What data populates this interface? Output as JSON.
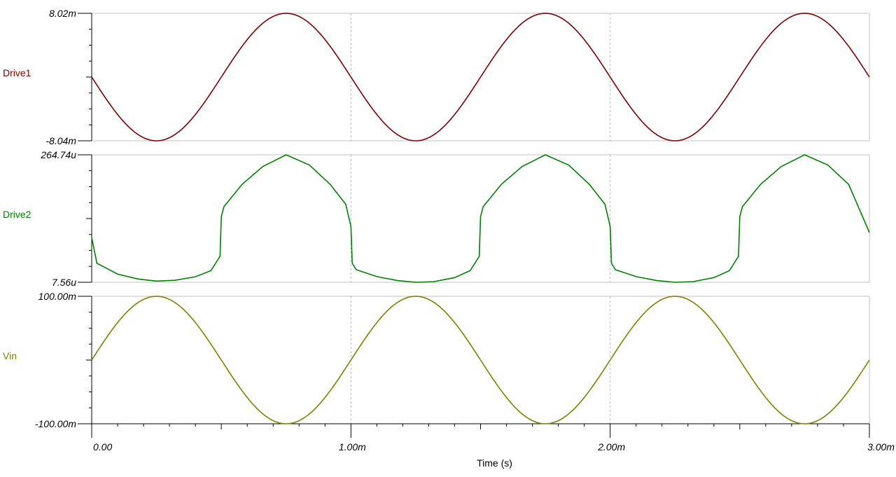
{
  "chart_data": {
    "type": "line",
    "xlabel": "Time (s)",
    "x_range": [
      0,
      0.003
    ],
    "x_tick_labels": [
      "0.00",
      "1.00m",
      "2.00m",
      "3.00m"
    ],
    "x_tick_values": [
      0,
      0.001,
      0.002,
      0.003
    ],
    "grid": "vertical dashed at major x ticks",
    "panels": [
      {
        "name": "Drive1",
        "color": "#800000",
        "y_range": [
          -0.00804,
          0.00802
        ],
        "y_tick_labels": [
          "8.02m",
          "-8.04m"
        ],
        "x": [
          0,
          0.00025,
          0.0005,
          0.00075,
          0.001,
          0.00125,
          0.0015,
          0.00175,
          0.002,
          0.00225,
          0.0025,
          0.00275,
          0.003
        ],
        "y": [
          0,
          -0.00804,
          0,
          0.00802,
          0,
          -0.00804,
          0,
          0.00802,
          0,
          -0.00804,
          0,
          0.00802,
          0
        ]
      },
      {
        "name": "Drive2",
        "color": "#008000",
        "y_range": [
          7.56e-06,
          0.00026474
        ],
        "y_tick_labels": [
          "264.74u",
          "7.56u"
        ],
        "x": [
          0,
          2e-05,
          0.0001,
          0.00018,
          0.00025,
          0.00032,
          0.0004,
          0.00046,
          0.000495,
          0.0005,
          0.00051,
          0.00058,
          0.00066,
          0.00075,
          0.00084,
          0.00092,
          0.00098,
          0.001,
          0.001005,
          0.00102,
          0.0011,
          0.00118,
          0.00125,
          0.00132,
          0.0014,
          0.00146,
          0.001495,
          0.0015,
          0.00151,
          0.00158,
          0.00166,
          0.00175,
          0.00184,
          0.00192,
          0.00198,
          0.002,
          0.002005,
          0.00202,
          0.0021,
          0.00218,
          0.00225,
          0.00232,
          0.0024,
          0.00246,
          0.002495,
          0.0025,
          0.00251,
          0.00258,
          0.00266,
          0.00275,
          0.00284,
          0.00292,
          0.003
        ],
        "y": [
          9.8e-05,
          4.6e-05,
          2.4e-05,
          1.4e-05,
          9.9e-06,
          1.15e-05,
          1.87e-05,
          3.1e-05,
          6e-05,
          0.00014,
          0.00016,
          0.000205,
          0.000241,
          0.00026474,
          0.000244,
          0.000205,
          0.000165,
          0.00012,
          4.6e-05,
          3.3e-05,
          1.9e-05,
          1.1e-05,
          7.56e-06,
          8.8e-06,
          1.7e-05,
          3.1e-05,
          6e-05,
          0.00014,
          0.00016,
          0.000205,
          0.000241,
          0.00026474,
          0.000244,
          0.000205,
          0.000165,
          0.00012,
          4.6e-05,
          3.3e-05,
          1.9e-05,
          1.1e-05,
          7.56e-06,
          8.8e-06,
          1.7e-05,
          3.1e-05,
          6e-05,
          0.00014,
          0.00016,
          0.000205,
          0.000241,
          0.00026474,
          0.000244,
          0.000205,
          0.000108
        ]
      },
      {
        "name": "Vin",
        "color": "#808000",
        "y_range": [
          -0.1,
          0.1
        ],
        "y_tick_labels": [
          "100.00m",
          "-100.00m"
        ],
        "x": [
          0,
          0.00025,
          0.0005,
          0.00075,
          0.001,
          0.00125,
          0.0015,
          0.00175,
          0.002,
          0.00225,
          0.0025,
          0.00275,
          0.003
        ],
        "y": [
          0,
          0.1,
          0,
          -0.1,
          0,
          0.1,
          0,
          -0.1,
          0,
          0.1,
          0,
          -0.1,
          0
        ]
      }
    ]
  }
}
